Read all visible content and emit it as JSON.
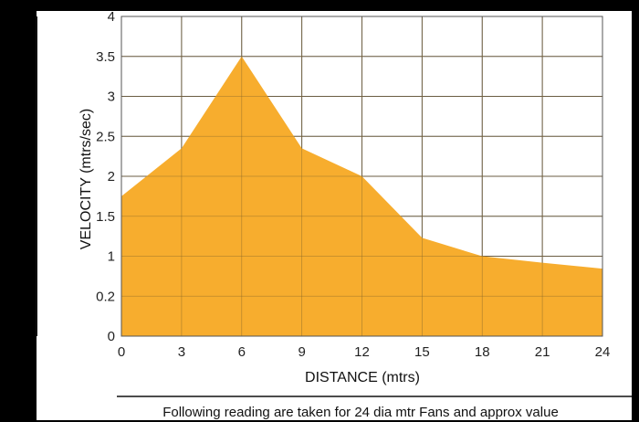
{
  "chart_data": {
    "type": "area",
    "xlabel": "DISTANCE (mtrs)",
    "ylabel": "VELOCITY (mtrs/sec)",
    "x_ticks": [
      "0",
      "3",
      "6",
      "9",
      "12",
      "15",
      "18",
      "21",
      "24"
    ],
    "y_ticks": [
      "0",
      "0.2",
      "1",
      "1.5",
      "2",
      "2.5",
      "3",
      "3.5",
      "4"
    ],
    "x": [
      0,
      3,
      6,
      9,
      12,
      15,
      18,
      21,
      24
    ],
    "values": [
      1.75,
      2.35,
      3.5,
      2.35,
      2.0,
      1.23,
      1.0,
      0.87,
      0.75
    ],
    "xlim": [
      0,
      24
    ],
    "ylim": [
      0,
      4
    ],
    "grid": true,
    "fill_color": "#F7AD2E",
    "note": "Following reading are taken for 24 dia mtr Fans and approx value"
  },
  "colors": {
    "background": "#000000",
    "plot_background": "#FFFFFF",
    "grid": "#555555"
  }
}
